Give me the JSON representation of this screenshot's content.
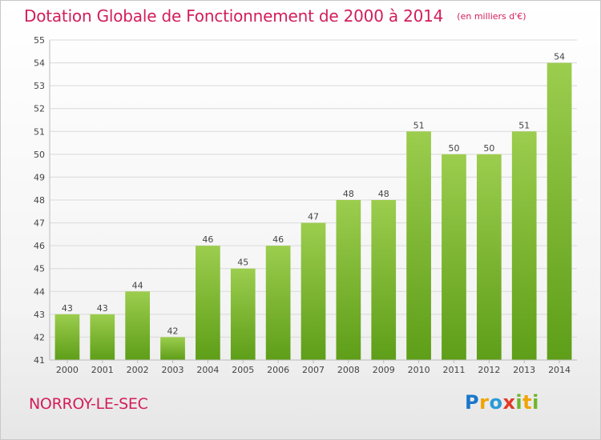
{
  "header": {
    "title": "Dotation Globale de Fonctionnement de 2000 à 2014",
    "subtitle": "(en milliers d'€)"
  },
  "footer": {
    "commune": "NORROY-LE-SEC",
    "logo_text": "Proxiti"
  },
  "chart_data": {
    "type": "bar",
    "title": "Dotation Globale de Fonctionnement de 2000 à 2014",
    "subtitle": "(en milliers d'€)",
    "categories": [
      "2000",
      "2001",
      "2002",
      "2003",
      "2004",
      "2005",
      "2006",
      "2007",
      "2008",
      "2009",
      "2010",
      "2011",
      "2012",
      "2013",
      "2014"
    ],
    "values": [
      43,
      43,
      44,
      42,
      46,
      45,
      46,
      47,
      48,
      48,
      51,
      50,
      50,
      51,
      54
    ],
    "ylim": [
      41,
      55
    ],
    "yticks": [
      41,
      42,
      43,
      44,
      45,
      46,
      47,
      48,
      49,
      50,
      51,
      52,
      53,
      54,
      55
    ],
    "grid": true,
    "bar_color_top": "#9ccd4e",
    "bar_color_bottom": "#5e9e18",
    "grid_color": "#d9d9d9"
  }
}
